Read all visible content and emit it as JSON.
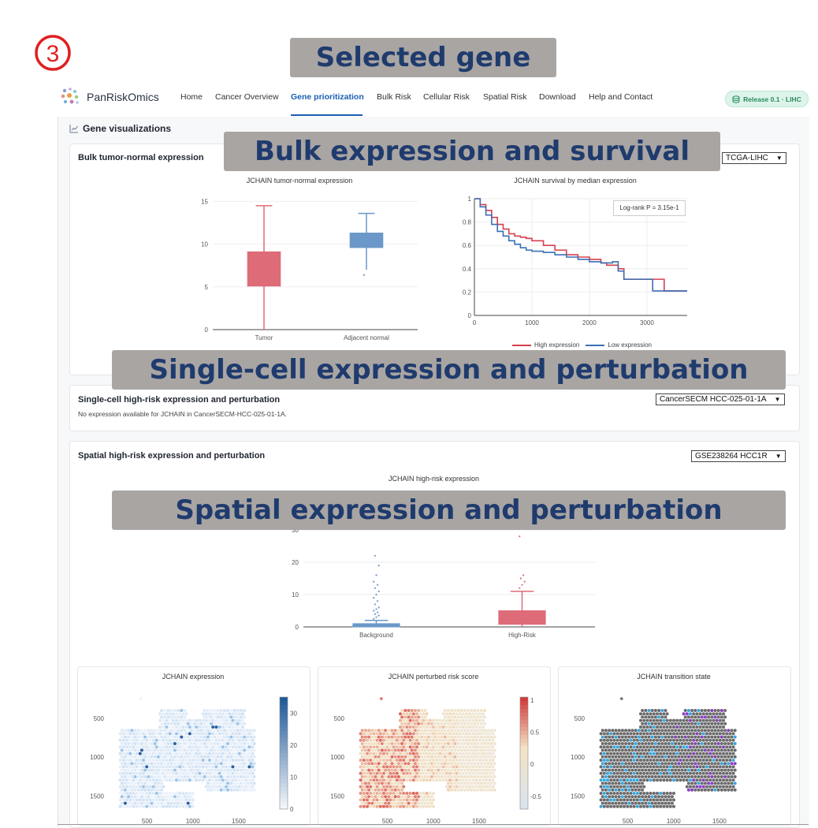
{
  "step_marker": "3",
  "banners": {
    "selected_gene": "Selected gene",
    "bulk": "Bulk expression and survival",
    "single_cell": "Single-cell expression and perturbation",
    "spatial": "Spatial expression and perturbation"
  },
  "navbar": {
    "brand": "PanRiskOmics",
    "items": [
      "Home",
      "Cancer Overview",
      "Gene prioritization",
      "Bulk Risk",
      "Cellular Risk",
      "Spatial Risk",
      "Download",
      "Help and Contact"
    ],
    "active_item": "Gene prioritization",
    "release": "Release 0.1 · LIHC"
  },
  "section_title": "Gene visualizations",
  "bulk_card": {
    "title": "Bulk tumor-normal expression",
    "dataset_select": "TCGA-LIHC",
    "boxplot_title": "JCHAIN tumor-normal expression",
    "survival_title": "JCHAIN survival by median expression",
    "logrank": "Log-rank P = 3.15e-1",
    "legend_high": "High expression",
    "legend_low": "Low expression"
  },
  "single_cell_card": {
    "title": "Single-cell high-risk expression and perturbation",
    "dataset_select": "CancerSECM HCC-025-01-1A",
    "message": "No expression available for JCHAIN in CancerSECM-HCC-025-01-1A."
  },
  "spatial_card": {
    "title": "Spatial high-risk expression and perturbation",
    "dataset_select": "GSE238264 HCC1R",
    "boxplot_title": "JCHAIN high-risk expression",
    "expr_title": "JCHAIN expression",
    "perturbed_title": "JCHAIN perturbed risk score",
    "transition_title": "JCHAIN transition state"
  },
  "colors": {
    "tumor": "#de6b78",
    "normal": "#6b98c8",
    "high": "#d6404e",
    "low": "#3a6fb5",
    "accent": "#1a5fb4",
    "banner_bg": "#a9a5a3",
    "banner_text": "#1f3b6e",
    "step_marker": "#e02020"
  },
  "chart_data": [
    {
      "type": "box",
      "title": "JCHAIN tumor-normal expression",
      "categories": [
        "Tumor",
        "Adjacent normal"
      ],
      "boxes": [
        {
          "name": "Tumor",
          "min": 0,
          "q1": 5.1,
          "median": 7.5,
          "q3": 9.1,
          "max": 14.5
        },
        {
          "name": "Adjacent normal",
          "min": 7.0,
          "q1": 9.6,
          "median": 10.3,
          "q3": 11.3,
          "max": 13.6,
          "outliers": [
            6.4
          ]
        }
      ],
      "yticks": [
        0,
        5,
        10,
        15
      ],
      "ylim": [
        0,
        15.5
      ]
    },
    {
      "type": "line",
      "title": "JCHAIN survival by median expression",
      "xticks": [
        0,
        1000,
        2000,
        3000
      ],
      "yticks": [
        0,
        0.2,
        0.4,
        0.6,
        0.8,
        1
      ],
      "xlim": [
        0,
        3700
      ],
      "ylim": [
        0,
        1
      ],
      "annotation": "Log-rank P = 3.15e-1",
      "series": [
        {
          "name": "High expression",
          "x": [
            0,
            100,
            200,
            300,
            400,
            500,
            600,
            700,
            800,
            900,
            1000,
            1200,
            1400,
            1600,
            1800,
            2000,
            2200,
            2300,
            2500,
            2600,
            2800,
            3000,
            3200,
            3300,
            3700
          ],
          "y": [
            1,
            0.95,
            0.9,
            0.84,
            0.78,
            0.74,
            0.7,
            0.68,
            0.67,
            0.66,
            0.64,
            0.6,
            0.56,
            0.52,
            0.5,
            0.48,
            0.45,
            0.43,
            0.4,
            0.31,
            0.31,
            0.31,
            0.31,
            0.21,
            0.21
          ]
        },
        {
          "name": "Low expression",
          "x": [
            0,
            100,
            200,
            300,
            400,
            500,
            600,
            700,
            800,
            900,
            1000,
            1200,
            1400,
            1600,
            1800,
            2000,
            2200,
            2400,
            2500,
            2600,
            2800,
            3000,
            3100,
            3700
          ],
          "y": [
            1,
            0.93,
            0.86,
            0.78,
            0.72,
            0.68,
            0.64,
            0.61,
            0.58,
            0.56,
            0.55,
            0.54,
            0.52,
            0.5,
            0.48,
            0.46,
            0.45,
            0.46,
            0.38,
            0.31,
            0.31,
            0.31,
            0.21,
            0.21
          ]
        }
      ]
    },
    {
      "type": "box",
      "title": "JCHAIN high-risk expression",
      "categories": [
        "Background",
        "High-Risk"
      ],
      "boxes": [
        {
          "name": "Background",
          "min": 0,
          "q1": 0,
          "median": 0.3,
          "q3": 1,
          "max": 2,
          "outliers": [
            2.5,
            3,
            3.5,
            4,
            4.5,
            5,
            5.5,
            6,
            7,
            8,
            9,
            10,
            11,
            12,
            13,
            14,
            16,
            19,
            22
          ]
        },
        {
          "name": "High-Risk",
          "min": 0,
          "q1": 0.8,
          "median": 2.5,
          "q3": 5,
          "max": 11,
          "outliers": [
            12,
            13,
            14,
            15,
            16,
            28
          ]
        }
      ],
      "yticks": [
        0,
        10,
        20,
        30
      ],
      "ylim": [
        0,
        30
      ]
    },
    {
      "type": "heatmap",
      "title": "JCHAIN expression",
      "yticks": [
        500,
        1000,
        1500
      ],
      "xticks": [
        500,
        1000,
        1500
      ],
      "colorbar_ticks": [
        0,
        10,
        20,
        30
      ]
    },
    {
      "type": "heatmap",
      "title": "JCHAIN perturbed risk score",
      "yticks": [
        500,
        1000,
        1500
      ],
      "xticks": [
        500,
        1000,
        1500
      ],
      "colorbar_ticks": [
        -0.5,
        0,
        0.5,
        1
      ]
    },
    {
      "type": "scatter",
      "title": "JCHAIN transition state",
      "yticks": [
        500,
        1000,
        1500
      ],
      "xticks": [
        500,
        1000,
        1500
      ]
    }
  ]
}
